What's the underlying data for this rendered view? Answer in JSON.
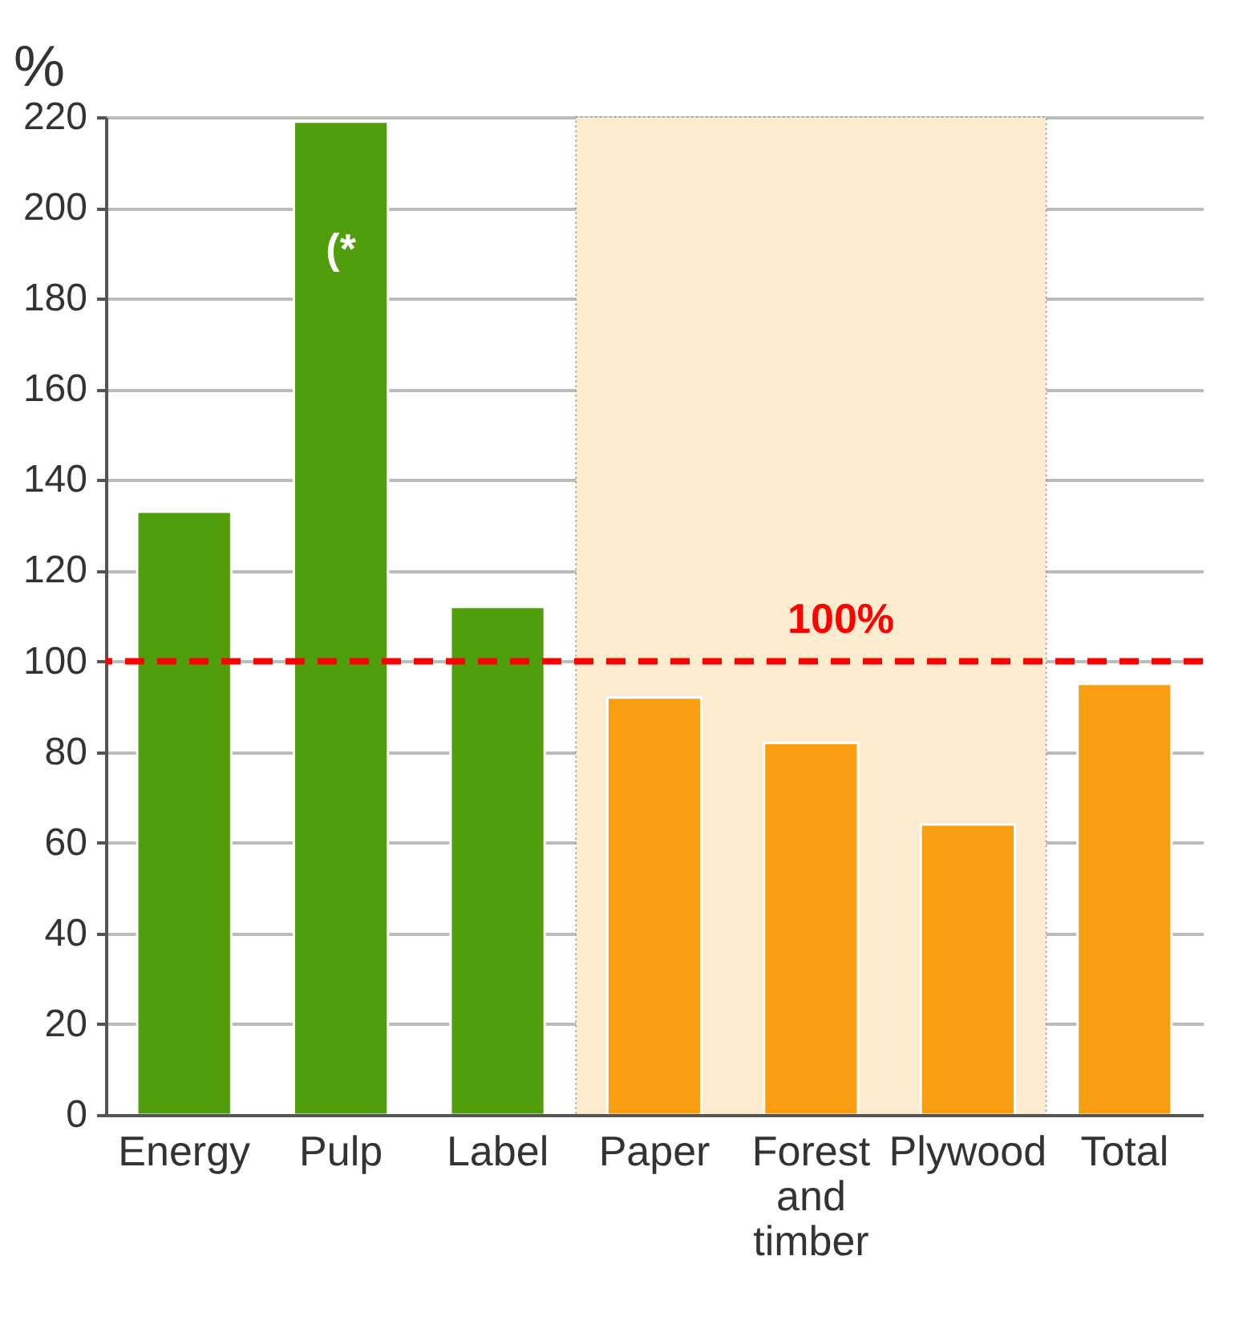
{
  "chart_data": {
    "type": "bar",
    "ylabel": "%",
    "categories": [
      "Energy",
      "Pulp",
      "Label",
      "Paper",
      "Forest and timber",
      "Plywood",
      "Total"
    ],
    "values": [
      133,
      219,
      112,
      92,
      82,
      64,
      95
    ],
    "colors": [
      "#519e0d",
      "#519e0d",
      "#519e0d",
      "#f99e11",
      "#f99e11",
      "#f99e11",
      "#f99e11"
    ],
    "ylim": [
      0,
      220
    ],
    "yticks": [
      0,
      20,
      40,
      60,
      80,
      100,
      120,
      140,
      160,
      180,
      200,
      220
    ],
    "grid": "y",
    "ref_lines": [
      {
        "axis": "y",
        "value": 100,
        "label": "100%",
        "color": "#ff0000",
        "line_style": "dashed"
      }
    ],
    "bands": [
      {
        "axis": "x",
        "from": "Paper",
        "to": "Plywood",
        "color": "#fdebd0"
      }
    ],
    "annotations": [
      "(*"
    ]
  }
}
